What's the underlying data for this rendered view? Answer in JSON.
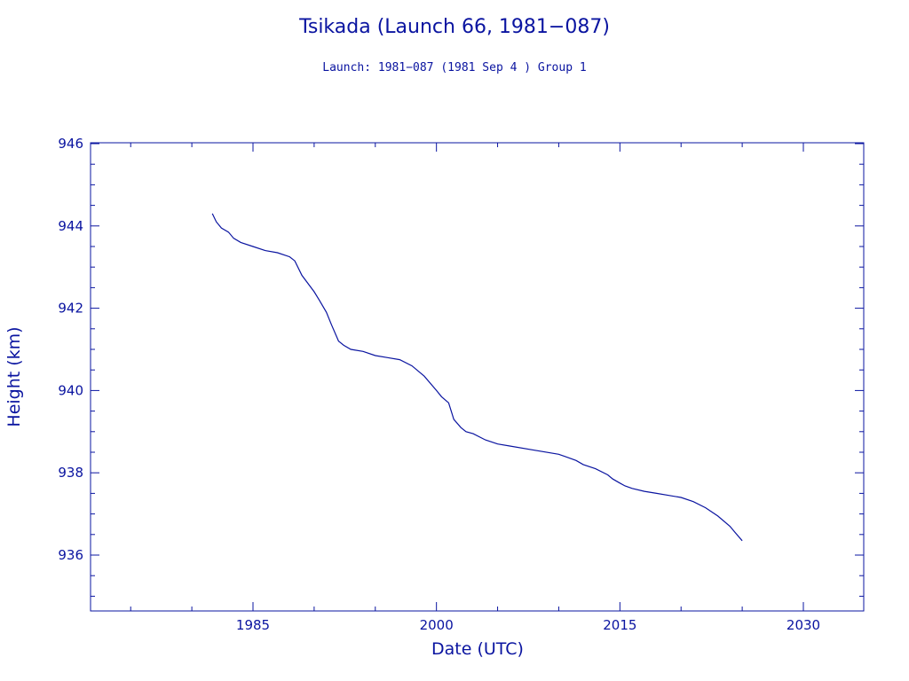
{
  "chart_data": {
    "type": "line",
    "title": "Tsikada (Launch 66, 1981−087)",
    "subtitle": "Launch: 1981−087  (1981 Sep  4 )  Group 1",
    "xlabel": "Date (UTC)",
    "ylabel": "Height (km)",
    "xlim": [
      1985,
      2035
    ],
    "ylim": [
      934.6,
      946.0
    ],
    "x_ticks": [
      "1985",
      "2000",
      "2015",
      "2030"
    ],
    "y_ticks": [
      "936",
      "938",
      "940",
      "942",
      "944",
      "946"
    ],
    "grid": false,
    "color": "#0a14a0",
    "series": [
      {
        "x": [
          "1981-09-04",
          "1982-01-01",
          "1982-06-01",
          "1983-01-01",
          "1983-06-01",
          "1984-01-01",
          "1985-01-01",
          "1986-01-01",
          "1987-01-01",
          "1988-01-01",
          "1988-06-01",
          "1989-01-01",
          "1990-01-01",
          "1990-06-01",
          "1991-01-01",
          "1991-06-01",
          "1992-01-01",
          "1992-06-01",
          "1993-01-01",
          "1994-01-01",
          "1995-01-01",
          "1996-01-01",
          "1997-01-01",
          "1998-01-01",
          "1999-01-01",
          "2000-01-01",
          "2000-06-01",
          "2001-01-01",
          "2001-06-01",
          "2002-01-01",
          "2002-06-01",
          "2003-01-01",
          "2004-01-01",
          "2005-01-01",
          "2006-01-01",
          "2008-01-01",
          "2010-01-01",
          "2011-06-01",
          "2012-01-01",
          "2013-01-01",
          "2014-01-01",
          "2014-06-01",
          "2015-01-01",
          "2015-06-01",
          "2016-01-01",
          "2017-01-01",
          "2018-01-01",
          "2019-01-01",
          "2020-01-01",
          "2021-01-01",
          "2022-01-01",
          "2023-01-01",
          "2024-01-01",
          "2024-06-01",
          "2025-01-01"
        ],
        "y": [
          944.3,
          944.1,
          943.95,
          943.85,
          943.7,
          943.6,
          943.5,
          943.4,
          943.35,
          943.25,
          943.15,
          942.8,
          942.4,
          942.2,
          941.9,
          941.6,
          941.2,
          941.1,
          941.0,
          940.95,
          940.85,
          940.8,
          940.75,
          940.6,
          940.35,
          940.0,
          939.85,
          939.7,
          939.3,
          939.1,
          939.0,
          938.95,
          938.8,
          938.7,
          938.65,
          938.55,
          938.45,
          938.3,
          938.2,
          938.1,
          937.95,
          937.85,
          937.75,
          937.68,
          937.62,
          937.55,
          937.5,
          937.45,
          937.4,
          937.3,
          937.15,
          936.95,
          936.7,
          936.55,
          936.35
        ]
      }
    ]
  }
}
